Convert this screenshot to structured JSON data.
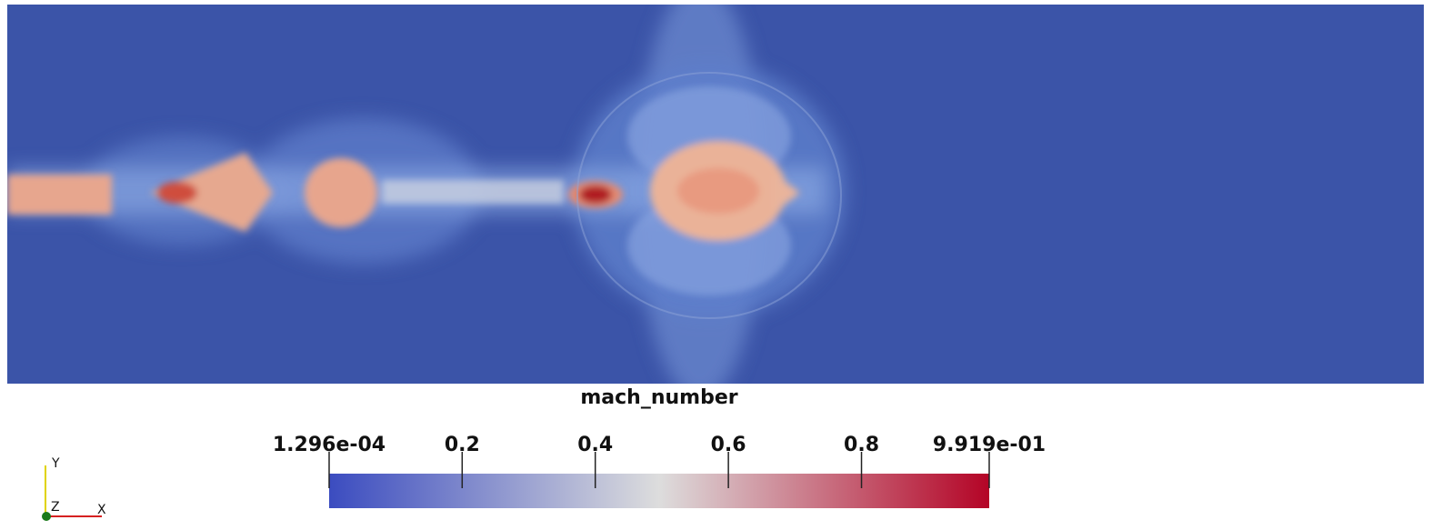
{
  "chart_data": {
    "type": "heatmap",
    "colorbar": {
      "title": "mach_number",
      "lim": [
        0.0001296,
        0.9919
      ],
      "ticks": [
        {
          "value": 0.0001296,
          "label": "1.296e-04"
        },
        0.2,
        0.4,
        0.6,
        0.8,
        {
          "value": 0.9919,
          "label": "9.919e-01"
        }
      ],
      "colormap": [
        "#3b4cc0",
        "#dddddd",
        "#b40426"
      ]
    },
    "axes": {
      "x": "X",
      "y": "Y",
      "z": "Z"
    }
  }
}
